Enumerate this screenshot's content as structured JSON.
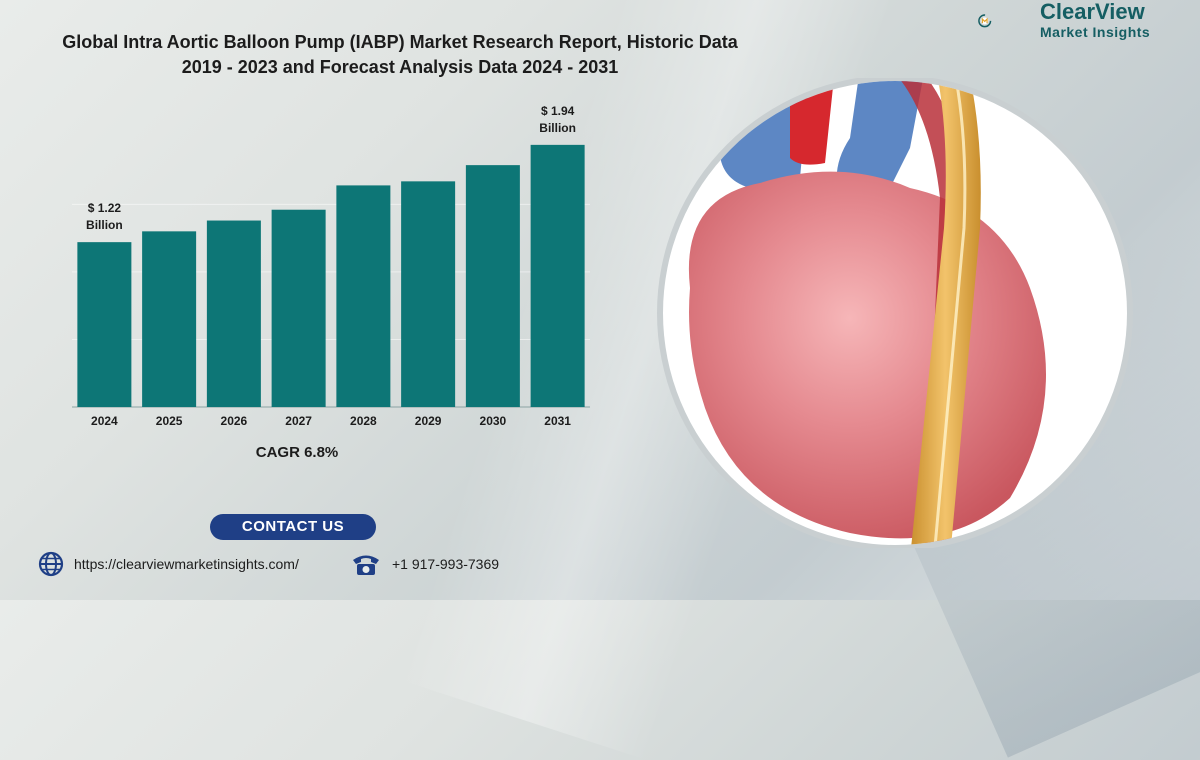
{
  "header": {
    "title_line1": "Global Intra Aortic Balloon Pump (IABP) Market Research Report, Historic Data",
    "title_line2": "2019 - 2023 and Forecast Analysis Data 2024 - 2031"
  },
  "logo": {
    "name": "ClearView",
    "tagline": "Market Insights",
    "icon": "clearview-logo-icon"
  },
  "chart_data": {
    "type": "bar",
    "title": "Global Intra Aortic Balloon Pump (IABP) Market",
    "categories": [
      "2024",
      "2025",
      "2026",
      "2027",
      "2028",
      "2029",
      "2030",
      "2031"
    ],
    "values": [
      1.22,
      1.3,
      1.38,
      1.46,
      1.64,
      1.67,
      1.79,
      1.94
    ],
    "units": "Billion",
    "xlabel": "",
    "ylabel": "",
    "ylim": [
      0,
      2.05
    ],
    "bar_color": "#0d7676",
    "grid": true,
    "annotations": [
      {
        "category": "2024",
        "line1": "$ 1.22",
        "line2": "Billion"
      },
      {
        "category": "2031",
        "line1": "$ 1.94",
        "line2": "Billion"
      }
    ]
  },
  "cagr": "CAGR 6.8%",
  "contact": {
    "button_label": "CONTACT US",
    "website": "https://clearviewmarketinsights.com/",
    "phone": "+1 917-993-7369"
  },
  "colors": {
    "accent": "#1f3f86",
    "brand": "#155e63",
    "bar": "#0d7676"
  }
}
